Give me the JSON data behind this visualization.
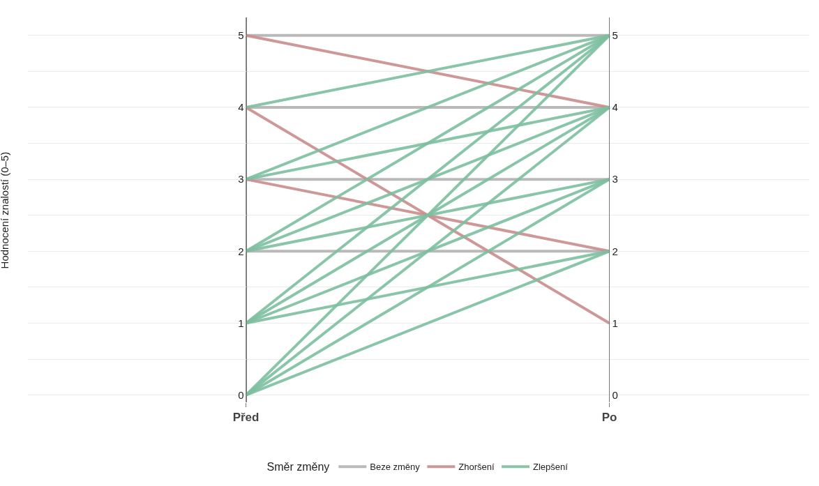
{
  "chart_data": {
    "type": "line",
    "ylabel": "Hodnocení znalostí (0–5)",
    "legend_title": "Směr změny",
    "legend": "bottom",
    "grid": true,
    "marker": "none",
    "line_style": "solid",
    "categories": [
      "Před",
      "Po"
    ],
    "ylim": [
      -0.1,
      5.25
    ],
    "yticks": [
      0,
      {
        "value": 0.5,
        "label": null
      },
      1,
      {
        "value": 1.5,
        "label": null
      },
      2,
      {
        "value": 2.5,
        "label": null
      },
      3,
      {
        "value": 3.5,
        "label": null
      },
      4,
      {
        "value": 4.5,
        "label": null
      },
      5
    ],
    "y2lim": [
      -0.1,
      5.25
    ],
    "y2ticks": [
      0,
      1,
      2,
      3,
      4,
      5
    ],
    "series": [
      {
        "name": "Beze změny",
        "color": "#b3b3b3",
        "values": [
          5,
          5
        ]
      },
      {
        "color": "#b3b3b3",
        "values": [
          4,
          4
        ]
      },
      {
        "color": "#b3b3b3",
        "values": [
          3,
          3
        ]
      },
      {
        "color": "#b3b3b3",
        "values": [
          2,
          2
        ]
      },
      {
        "name": "Zhoršení",
        "color": "#c98d8d",
        "values": [
          5,
          4
        ]
      },
      {
        "color": "#c98d8d",
        "values": [
          4,
          1
        ]
      },
      {
        "color": "#c98d8d",
        "values": [
          3,
          2
        ]
      },
      {
        "name": "Zlepšení",
        "color": "#7dbf9f",
        "values": [
          4,
          5
        ]
      },
      {
        "color": "#7dbf9f",
        "values": [
          3,
          5
        ]
      },
      {
        "color": "#7dbf9f",
        "values": [
          3,
          4
        ]
      },
      {
        "color": "#7dbf9f",
        "values": [
          2,
          5
        ]
      },
      {
        "color": "#7dbf9f",
        "values": [
          2,
          4
        ]
      },
      {
        "color": "#7dbf9f",
        "values": [
          2,
          3
        ]
      },
      {
        "color": "#7dbf9f",
        "values": [
          1,
          5
        ]
      },
      {
        "color": "#7dbf9f",
        "values": [
          1,
          4
        ]
      },
      {
        "color": "#7dbf9f",
        "values": [
          1,
          3
        ]
      },
      {
        "color": "#7dbf9f",
        "values": [
          1,
          2
        ]
      },
      {
        "color": "#7dbf9f",
        "values": [
          0,
          5
        ]
      },
      {
        "color": "#7dbf9f",
        "values": [
          0,
          4
        ]
      },
      {
        "color": "#7dbf9f",
        "values": [
          0,
          3
        ]
      },
      {
        "color": "#7dbf9f",
        "values": [
          0,
          2
        ]
      }
    ]
  }
}
